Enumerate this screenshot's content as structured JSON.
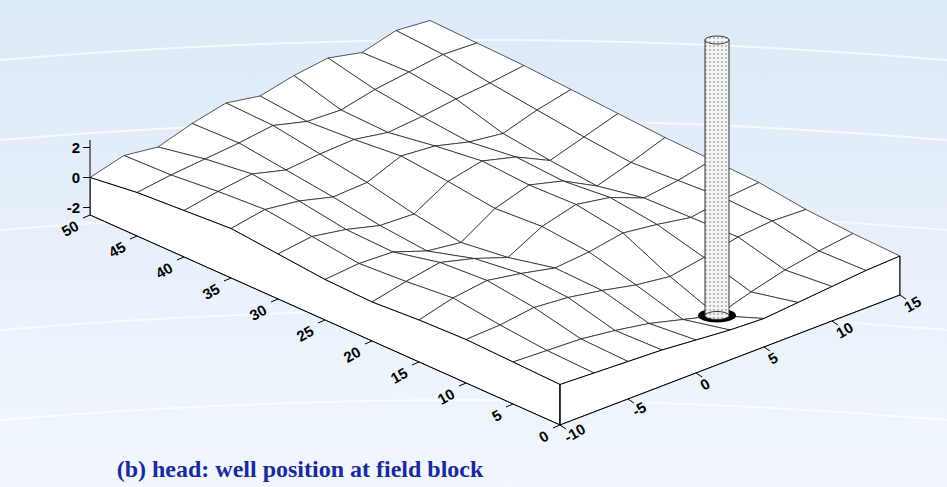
{
  "chart_data": {
    "type": "surface",
    "title": "(b) head: well position at field block",
    "x": [
      0,
      5,
      10,
      15,
      20,
      25,
      30,
      35,
      40,
      45,
      50
    ],
    "y": [
      -10,
      -7.5,
      -5,
      -2.5,
      0,
      2.5,
      5,
      7.5,
      10,
      12.5,
      15
    ],
    "z": [
      [
        0.2,
        0.1,
        0,
        -0.1,
        -0.3,
        -0.5,
        -0.6,
        -0.4,
        -0.2,
        0,
        0.1
      ],
      [
        0.3,
        0.2,
        0.1,
        -0.2,
        -0.6,
        -1.2,
        -1.8,
        -1.1,
        -0.5,
        -0.1,
        0.2
      ],
      [
        0.4,
        0.5,
        0.8,
        0.6,
        0.2,
        -0.3,
        -0.6,
        -0.2,
        0.3,
        0.5,
        0.4
      ],
      [
        0.3,
        0.9,
        1.2,
        0.8,
        0.3,
        0.5,
        0.9,
        0.6,
        0.2,
        0.6,
        0.8
      ],
      [
        0.1,
        0.6,
        1.0,
        0.4,
        -0.4,
        0.8,
        1.4,
        1.0,
        0.1,
        0.4,
        0.9
      ],
      [
        0.2,
        0.4,
        0.3,
        -0.5,
        -0.8,
        0.6,
        1.3,
        0.7,
        -0.5,
        0.2,
        1.0
      ],
      [
        0.5,
        0.8,
        0.4,
        -0.2,
        -0.3,
        1.0,
        1.5,
        0.9,
        -0.2,
        0.5,
        1.2
      ],
      [
        0.8,
        1.2,
        0.9,
        0.3,
        0.4,
        1.3,
        1.1,
        0.5,
        0.2,
        0.9,
        1.4
      ],
      [
        0.6,
        1.0,
        1.3,
        0.7,
        0.9,
        1.0,
        0.6,
        0.8,
        1.1,
        1.3,
        1.6
      ],
      [
        0.4,
        0.7,
        0.9,
        1.1,
        1.4,
        0.8,
        0.7,
        1.2,
        1.5,
        1.8,
        1.7
      ],
      [
        0.0,
        0.6,
        0.3,
        1.0,
        1.5,
        1.1,
        1.6,
        1.9,
        1.4,
        2.0,
        1.8
      ]
    ],
    "well": {
      "x": 5,
      "y": 5
    },
    "xlim": [
      0,
      50
    ],
    "ylim": [
      -10,
      15
    ],
    "zlim": [
      -2.5,
      2.5
    ],
    "xticks": [
      0,
      5,
      10,
      15,
      20,
      25,
      30,
      35,
      40,
      45,
      50
    ],
    "yticks": [
      -10,
      -5,
      0,
      5,
      10,
      15
    ],
    "zticks": [
      -2,
      0,
      2
    ]
  }
}
